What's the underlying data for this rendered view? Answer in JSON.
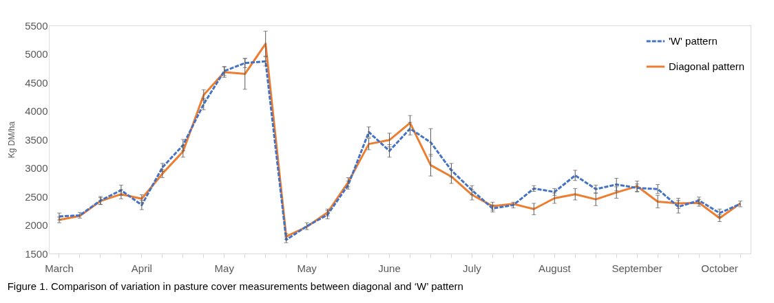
{
  "chart_data": {
    "type": "line",
    "ylabel": "Kg DM/ha",
    "annotations": [
      "Figure 1. Comparison of variation in pasture cover measurements between diagonal and ‘W’ pattern"
    ],
    "categories": [
      "March",
      null,
      null,
      null,
      "April",
      null,
      null,
      null,
      "May",
      null,
      null,
      null,
      "May",
      null,
      null,
      null,
      "June",
      null,
      null,
      null,
      "July",
      null,
      null,
      null,
      "August",
      null,
      null,
      null,
      "September",
      null,
      null,
      null,
      "October",
      null
    ],
    "ylim": [
      1500,
      5500
    ],
    "yticks": [
      1500,
      2000,
      2500,
      3000,
      3500,
      4000,
      4500,
      5000,
      5500
    ],
    "grid": false,
    "legend": "top right",
    "series": [
      {
        "name": "'W' pattern",
        "color": "#4472c4",
        "line_style": "dashed",
        "values": [
          2150,
          2170,
          2430,
          2610,
          2350,
          3010,
          3400,
          4120,
          4700,
          4840,
          4870,
          1740,
          1980,
          2180,
          2700,
          3630,
          3300,
          3690,
          3450,
          2960,
          2610,
          2290,
          2350,
          2640,
          2580,
          2870,
          2630,
          2710,
          2650,
          2630,
          2320,
          2430,
          2210,
          2370
        ],
        "errors": [
          60,
          50,
          70,
          90,
          80,
          70,
          100,
          100,
          80,
          80,
          80,
          50,
          60,
          70,
          70,
          90,
          110,
          110,
          240,
          120,
          80,
          60,
          50,
          50,
          60,
          90,
          70,
          110,
          70,
          80,
          110,
          60,
          70,
          50
        ]
      },
      {
        "name": "Diagonal pattern",
        "color": "#ed7d31",
        "line_style": "solid",
        "values": [
          2090,
          2160,
          2420,
          2540,
          2460,
          2900,
          3290,
          4280,
          4680,
          4650,
          5180,
          1800,
          1970,
          2220,
          2750,
          3420,
          3490,
          3790,
          3050,
          2850,
          2530,
          2330,
          2370,
          2280,
          2470,
          2540,
          2450,
          2570,
          2680,
          2410,
          2380,
          2390,
          2120,
          2380
        ],
        "errors": [
          50,
          null,
          60,
          80,
          70,
          70,
          100,
          90,
          90,
          270,
          220,
          50,
          null,
          60,
          80,
          100,
          120,
          130,
          190,
          120,
          90,
          70,
          null,
          100,
          90,
          100,
          110,
          100,
          90,
          110,
          90,
          60,
          60,
          null
        ]
      }
    ]
  }
}
